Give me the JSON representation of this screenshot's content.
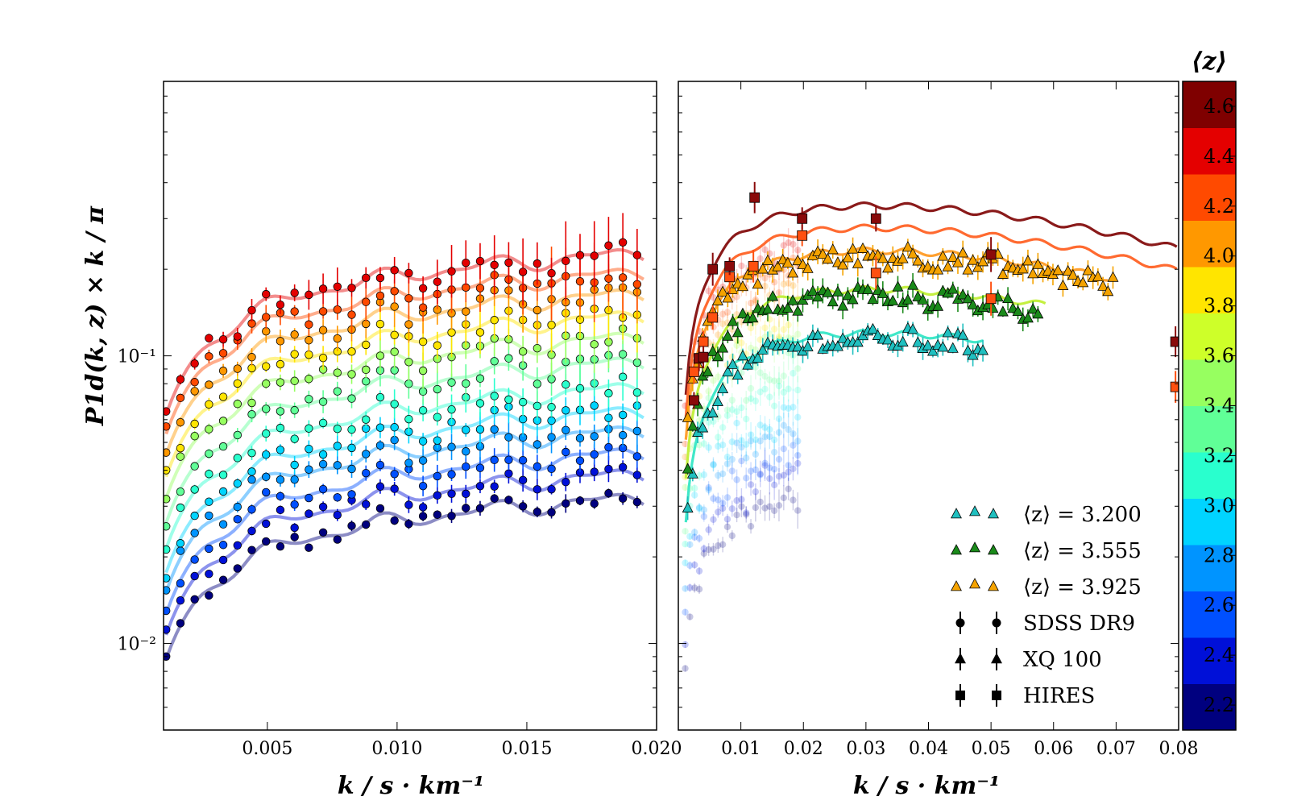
{
  "chart_data": [
    {
      "type": "scatter",
      "panel": "left",
      "xlabel": "k / s · km⁻¹",
      "ylabel": "P1d(k, z) × k / π",
      "xlim": [
        0.001,
        0.02
      ],
      "ylim": [
        0.005,
        0.9
      ],
      "yscale": "log",
      "xticks": [
        "0.005",
        "0.010",
        "0.015",
        "0.020"
      ],
      "yticks": [
        "10⁻²",
        "10⁻¹"
      ],
      "colorbar": {
        "label": "⟨z⟩",
        "ticks": [
          "2.2",
          "2.4",
          "2.6",
          "2.8",
          "3.0",
          "3.2",
          "3.4",
          "3.6",
          "3.8",
          "4.0",
          "4.2",
          "4.4",
          "4.6"
        ],
        "range": [
          2.1,
          4.7
        ],
        "colors": [
          "#00007f",
          "#0010d8",
          "#0050ff",
          "#0094ff",
          "#00d4ff",
          "#29ffce",
          "#60ff97",
          "#97ff60",
          "#ceff29",
          "#ffe500",
          "#ff9800",
          "#ff4a00",
          "#e40000",
          "#7f0000"
        ]
      },
      "series": [
        {
          "z": 2.2,
          "color": "#00007f",
          "amp": 0.0335
        },
        {
          "z": 2.4,
          "color": "#0010d8",
          "amp": 0.04
        },
        {
          "z": 2.6,
          "color": "#0050ff",
          "amp": 0.0465
        },
        {
          "z": 2.8,
          "color": "#0094ff",
          "amp": 0.0545
        },
        {
          "z": 3.0,
          "color": "#00d4ff",
          "amp": 0.0625
        },
        {
          "z": 3.2,
          "color": "#29ffce",
          "amp": 0.0745
        },
        {
          "z": 3.4,
          "color": "#60ff97",
          "amp": 0.09
        },
        {
          "z": 3.6,
          "color": "#97ff60",
          "amp": 0.108
        },
        {
          "z": 3.8,
          "color": "#ffe500",
          "amp": 0.126
        },
        {
          "z": 4.0,
          "color": "#ff9800",
          "amp": 0.148
        },
        {
          "z": 4.2,
          "color": "#ff4a00",
          "amp": 0.172
        },
        {
          "z": 4.4,
          "color": "#e40000",
          "amp": 0.198
        }
      ]
    },
    {
      "type": "scatter",
      "panel": "right",
      "xlabel": "k / s · km⁻¹",
      "xlim": [
        0.0,
        0.08
      ],
      "ylim": [
        0.005,
        0.9
      ],
      "yscale": "log",
      "xticks": [
        "0.01",
        "0.02",
        "0.03",
        "0.04",
        "0.05",
        "0.06",
        "0.07",
        "0.08"
      ],
      "series": [
        {
          "name": "⟨z⟩ = 3.200",
          "marker": "triangle",
          "color": "#20c0c0",
          "kmax": 0.049,
          "amp": 0.095
        },
        {
          "name": "⟨z⟩ = 3.555",
          "marker": "triangle",
          "color": "#1a8a1a",
          "kmax": 0.058,
          "amp": 0.135
        },
        {
          "name": "⟨z⟩ = 3.925",
          "marker": "triangle",
          "color": "#f5a300",
          "kmax": 0.07,
          "amp": 0.185
        },
        {
          "name": "HIRES z4.2",
          "marker": "square",
          "color": "#ff5010",
          "x": [
            0.0025,
            0.0033,
            0.004,
            0.0055,
            0.0082,
            0.012,
            0.0198,
            0.0316,
            0.05,
            0.0795
          ],
          "y": [
            0.088,
            0.098,
            0.112,
            0.136,
            0.188,
            0.205,
            0.262,
            0.194,
            0.158,
            0.078
          ]
        },
        {
          "name": "HIRES z4.6",
          "marker": "square",
          "color": "#8a0a0a",
          "x": [
            0.0025,
            0.0033,
            0.004,
            0.0055,
            0.0082,
            0.0122,
            0.0198,
            0.0316,
            0.05,
            0.0795
          ],
          "y": [
            0.07,
            0.098,
            0.099,
            0.2,
            0.205,
            0.355,
            0.3,
            0.3,
            0.225,
            0.112
          ]
        }
      ],
      "legend": {
        "position": "lower-right",
        "entries": [
          "⟨z⟩ = 3.200",
          "⟨z⟩ = 3.555",
          "⟨z⟩ = 3.925",
          "SDSS DR9",
          "XQ 100",
          "HIRES"
        ]
      }
    }
  ]
}
